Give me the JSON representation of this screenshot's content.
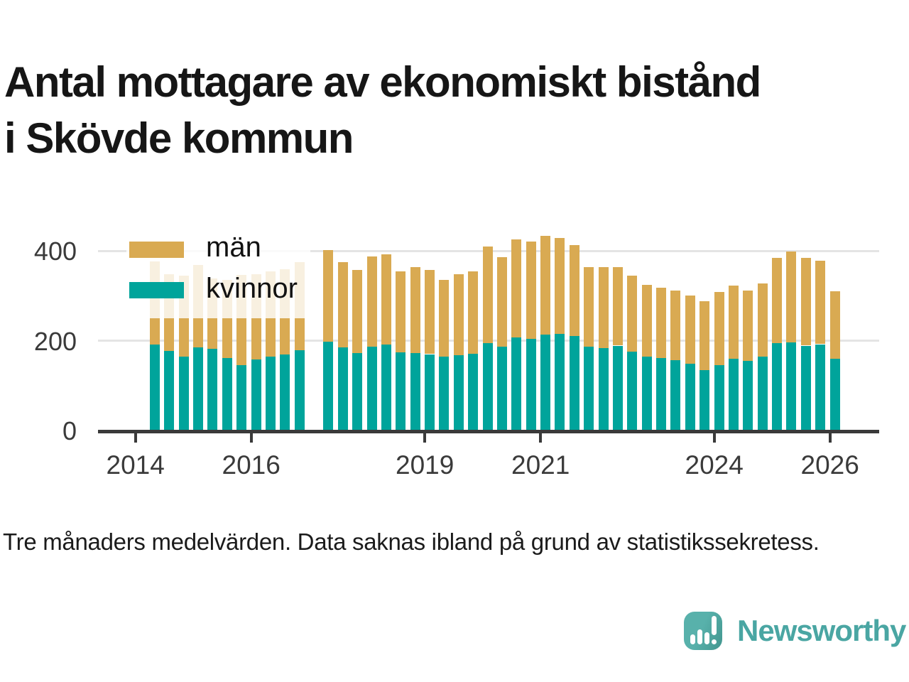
{
  "header": {
    "title_lines": [
      "Antal mottagare av ekonomiskt bistånd",
      "i Skövde kommun"
    ]
  },
  "legend": {
    "items": [
      {
        "label": "män",
        "color": "#d9aa52"
      },
      {
        "label": "kvinnor",
        "color": "#00a49b"
      }
    ]
  },
  "footnote": "Tre månaders medelvärden. Data saknas ibland på grund av statistikssekretess.",
  "brand": {
    "name": "Newsworthy",
    "icon": "speech-bubble-bar-chart-icon",
    "color": "#4aa6a3"
  },
  "colors": {
    "man_bar": "#d9aa52",
    "kvinnor_bar": "#00a49b",
    "axis": "#3a3a3a",
    "grid": "#e4e4e4",
    "title_text": "#161616"
  },
  "chart_data": {
    "type": "bar",
    "stacked": true,
    "title": "Antal mottagare av ekonomiskt bistånd i Skövde kommun",
    "xlabel": "",
    "ylabel": "",
    "x": [
      "2014-05",
      "2014-08",
      "2014-11",
      "2015-02",
      "2015-05",
      "2015-08",
      "2015-11",
      "2016-02",
      "2016-05",
      "2016-08",
      "2016-11",
      "2017-02",
      "2017-05",
      "2017-08",
      "2017-11",
      "2018-02",
      "2018-05",
      "2018-08",
      "2018-11",
      "2019-02",
      "2019-05",
      "2019-08",
      "2019-11",
      "2020-02",
      "2020-05",
      "2020-08",
      "2020-11",
      "2021-02",
      "2021-05",
      "2021-08",
      "2021-11",
      "2022-02",
      "2022-05",
      "2022-08",
      "2022-11",
      "2023-02",
      "2023-05",
      "2023-08",
      "2023-11",
      "2024-02",
      "2024-05",
      "2024-08",
      "2024-11",
      "2025-02",
      "2025-05",
      "2025-08",
      "2025-11",
      "2026-02"
    ],
    "series": [
      {
        "name": "män",
        "color": "#d9aa52",
        "values": [
          186,
          171,
          181,
          184,
          157,
          174,
          201,
          190,
          190,
          190,
          196,
          null,
          204,
          190,
          186,
          202,
          201,
          180,
          190,
          188,
          171,
          180,
          183,
          215,
          200,
          218,
          216,
          220,
          214,
          203,
          177,
          180,
          175,
          168,
          160,
          156,
          154,
          152,
          154,
          163,
          163,
          156,
          164,
          190,
          203,
          195,
          186,
          150
        ]
      },
      {
        "name": "kvinnor",
        "color": "#00a49b",
        "values": [
          191,
          177,
          164,
          185,
          182,
          162,
          145,
          158,
          164,
          169,
          179,
          null,
          198,
          185,
          172,
          186,
          191,
          174,
          173,
          170,
          164,
          168,
          171,
          194,
          186,
          207,
          204,
          213,
          215,
          210,
          186,
          184,
          189,
          176,
          164,
          162,
          157,
          149,
          134,
          146,
          159,
          155,
          164,
          194,
          196,
          189,
          192,
          160
        ]
      }
    ],
    "x_ticks": [
      2014,
      2016,
      2019,
      2021,
      2024,
      2026
    ],
    "y_ticks": [
      0,
      200,
      400
    ],
    "ylim": [
      0,
      450
    ],
    "grid": true,
    "legend_position": "inside-top-left",
    "missing_data_positions": [
      "2017-02"
    ]
  }
}
